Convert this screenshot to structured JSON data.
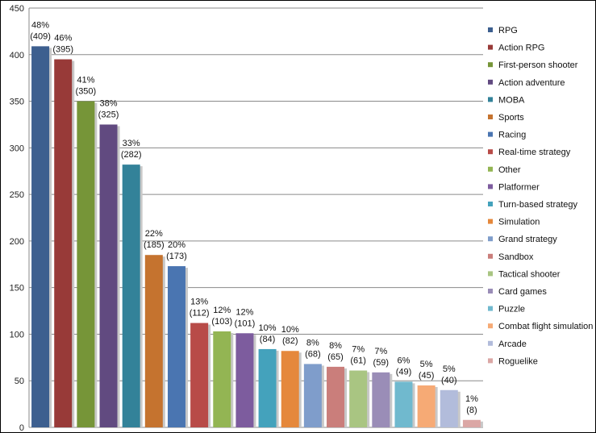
{
  "chart_data": {
    "type": "bar",
    "title": "",
    "xlabel": "",
    "ylabel": "",
    "ylim": [
      0,
      450
    ],
    "yticks": [
      "0",
      "50",
      "100",
      "150",
      "200",
      "250",
      "300",
      "350",
      "400",
      "450"
    ],
    "grid": true,
    "legend_position": "right",
    "categories": [
      "RPG",
      "Action RPG",
      "First-person shooter",
      "Action adventure",
      "MOBA",
      "Sports",
      "Racing",
      "Real-time strategy",
      "Other",
      "Platformer",
      "Turn-based strategy",
      "Simulation",
      "Grand strategy",
      "Sandbox",
      "Tactical shooter",
      "Card games",
      "Puzzle",
      "Combat flight simulation",
      "Arcade",
      "Roguelike"
    ],
    "values": [
      409,
      395,
      350,
      325,
      282,
      185,
      173,
      112,
      103,
      101,
      84,
      82,
      68,
      65,
      61,
      59,
      49,
      45,
      40,
      8
    ],
    "percent_labels": [
      "48%",
      "46%",
      "41%",
      "38%",
      "33%",
      "22%",
      "20%",
      "13%",
      "12%",
      "12%",
      "10%",
      "10%",
      "8%",
      "8%",
      "7%",
      "7%",
      "6%",
      "5%",
      "5%",
      "1%"
    ],
    "count_labels": [
      "(409)",
      "(395)",
      "(350)",
      "(325)",
      "(282)",
      "(185)",
      "(173)",
      "(112)",
      "(103)",
      "(101)",
      "(84)",
      "(82)",
      "(68)",
      "(65)",
      "(61)",
      "(59)",
      "(49)",
      "(45)",
      "(40)",
      "(8)"
    ],
    "colors": [
      "#3d5f8f",
      "#983a38",
      "#769538",
      "#614a80",
      "#338299",
      "#c5732f",
      "#4a75b1",
      "#b84b48",
      "#93b553",
      "#7d5c9e",
      "#44a2bc",
      "#e5883c",
      "#7f9dcb",
      "#ca7e7b",
      "#a9c582",
      "#9a8db7",
      "#70b9ce",
      "#f6aa75",
      "#b2bcdb",
      "#dba7a5"
    ]
  }
}
